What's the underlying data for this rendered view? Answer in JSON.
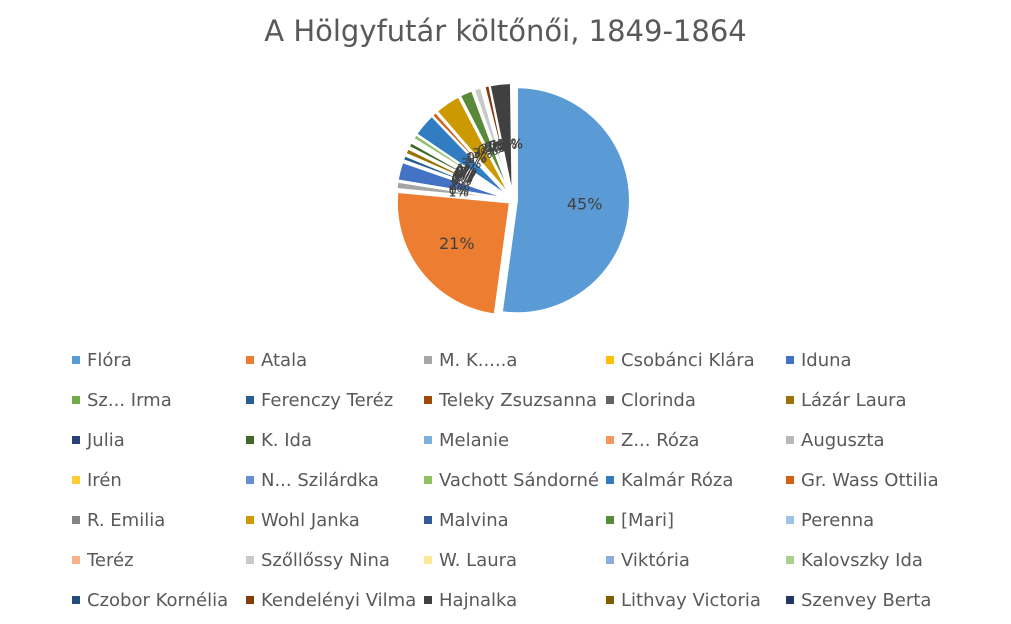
{
  "chart_data": {
    "type": "pie",
    "title": "A Hölgyfutár költőnői, 1849-1864",
    "exploded": true,
    "data_labels": "percent",
    "legend_position": "bottom",
    "series": [
      {
        "name": "Flóra",
        "value": 45.0,
        "color": "#5B9BD5",
        "label": "45%"
      },
      {
        "name": "Atala",
        "value": 21.0,
        "color": "#ED7D31",
        "label": "21%"
      },
      {
        "name": "M. K.....a",
        "value": 0.9,
        "color": "#A5A5A5",
        "label": "1%"
      },
      {
        "name": "Csobánci Klára",
        "value": 0.1,
        "color": "#FFC000",
        "label": "0%"
      },
      {
        "name": "Iduna",
        "value": 2.3,
        "color": "#4472C4",
        "label": "2%"
      },
      {
        "name": "Sz... Irma",
        "value": 0.2,
        "color": "#70AD47",
        "label": "0%"
      },
      {
        "name": "Ferenczy Teréz",
        "value": 0.6,
        "color": "#255E91",
        "label": "1%"
      },
      {
        "name": "Teleky Zsuzsanna",
        "value": 0.1,
        "color": "#9E480E",
        "label": "0%"
      },
      {
        "name": "Clorinda",
        "value": 0.1,
        "color": "#636363",
        "label": "0%"
      },
      {
        "name": "Lázár Laura",
        "value": 0.7,
        "color": "#997300",
        "label": "1%"
      },
      {
        "name": "Julia",
        "value": 0.2,
        "color": "#264478",
        "label": "0%"
      },
      {
        "name": "K. Ida",
        "value": 0.6,
        "color": "#43682B",
        "label": "1%"
      },
      {
        "name": "Melanie",
        "value": 0.1,
        "color": "#7CAFDD",
        "label": "0%"
      },
      {
        "name": "Z... Róza",
        "value": 0.1,
        "color": "#F1975A",
        "label": "0%"
      },
      {
        "name": "Auguszta",
        "value": 0.1,
        "color": "#B7B7B7",
        "label": "0%"
      },
      {
        "name": "Irén",
        "value": 0.1,
        "color": "#FFCD33",
        "label": "0%"
      },
      {
        "name": "N... Szilárdka",
        "value": 0.1,
        "color": "#698ED0",
        "label": "0%"
      },
      {
        "name": "Vachott Sándorné",
        "value": 0.6,
        "color": "#8CC168",
        "label": "1%"
      },
      {
        "name": "Kalmár Róza",
        "value": 2.9,
        "color": "#327DC2",
        "label": "3%"
      },
      {
        "name": "Gr. Wass Ottilia",
        "value": 0.6,
        "color": "#D26012",
        "label": "1%"
      },
      {
        "name": "R. Emilia",
        "value": 0.1,
        "color": "#848484",
        "label": "0%"
      },
      {
        "name": "Wohl Janka",
        "value": 3.2,
        "color": "#CC9A00",
        "label": "3%"
      },
      {
        "name": "Malvina",
        "value": 0.1,
        "color": "#335AA1",
        "label": "0%"
      },
      {
        "name": "[Mari]",
        "value": 1.6,
        "color": "#5A8A39",
        "label": "2%"
      },
      {
        "name": "Perenna",
        "value": 0.1,
        "color": "#9DC3E6",
        "label": "0%"
      },
      {
        "name": "Teréz",
        "value": 0.1,
        "color": "#F4B183",
        "label": "0%"
      },
      {
        "name": "Szőllőssy Nina",
        "value": 0.9,
        "color": "#C9C9C9",
        "label": "1%"
      },
      {
        "name": "W. Laura",
        "value": 0.1,
        "color": "#FFE699",
        "label": "0%"
      },
      {
        "name": "Viktória",
        "value": 0.1,
        "color": "#8FAADC",
        "label": "0%"
      },
      {
        "name": "Kalovszky Ida",
        "value": 0.1,
        "color": "#A9D18E",
        "label": "0%"
      },
      {
        "name": "Czobor Kornélia",
        "value": 0.1,
        "color": "#1F4E79",
        "label": "0%"
      },
      {
        "name": "Kendelényi Vilma",
        "value": 0.6,
        "color": "#843C0C",
        "label": "1%"
      },
      {
        "name": "Hajnalka",
        "value": 2.6,
        "color": "#404040",
        "label": "3%"
      },
      {
        "name": "Lithvay Victoria",
        "value": 0.1,
        "color": "#7F6000",
        "label": "0%"
      },
      {
        "name": "Szenvey Berta",
        "value": 0.1,
        "color": "#203864",
        "label": "0%"
      }
    ]
  }
}
